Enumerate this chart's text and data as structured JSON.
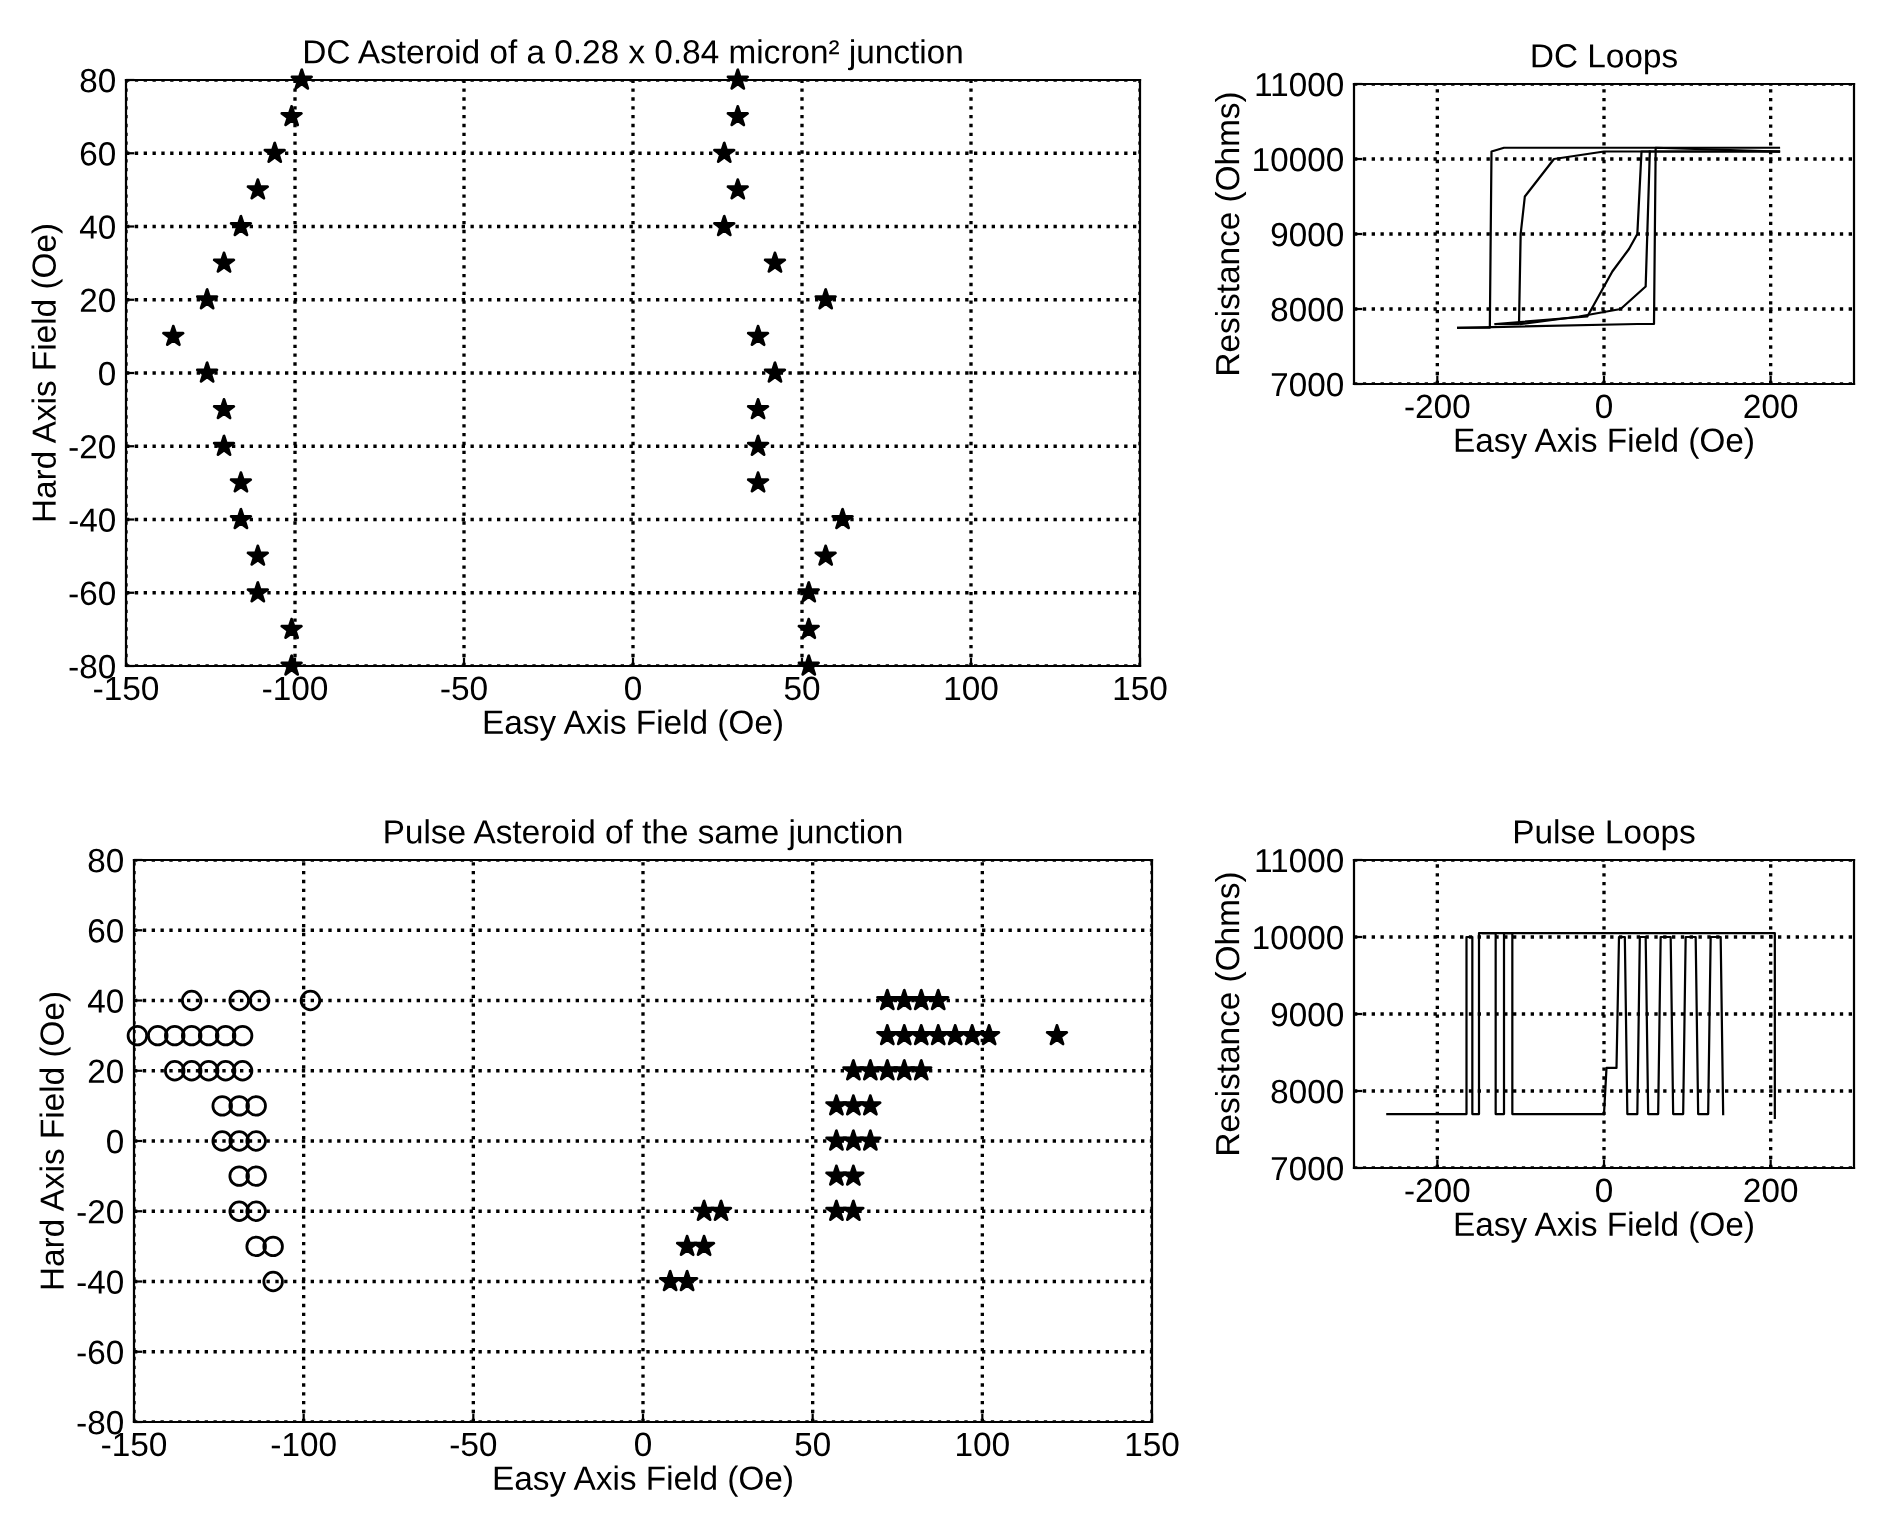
{
  "chart_data": [
    {
      "type": "scatter",
      "title": "DC Asteroid of a 0.28 x 0.84 micron² junction",
      "xlabel": "Easy Axis Field (Oe)",
      "ylabel": "Hard Axis Field (Oe)",
      "xlim": [
        -150,
        150
      ],
      "ylim": [
        -80,
        80
      ],
      "xticks": [
        -150,
        -100,
        -50,
        0,
        50,
        100,
        150
      ],
      "yticks": [
        -80,
        -60,
        -40,
        -20,
        0,
        20,
        40,
        60,
        80
      ],
      "grid": true,
      "series": [
        {
          "color": "#000000",
          "marker": "star",
          "x": [
            -98,
            -101,
            -106,
            -111,
            -116,
            -121,
            -126,
            -136,
            -126,
            -121,
            -121,
            -116,
            -116,
            -111,
            -111,
            -101,
            -101
          ],
          "values": [
            80,
            70,
            60,
            50,
            40,
            30,
            20,
            10,
            0,
            -10,
            -20,
            -30,
            -40,
            -50,
            -60,
            -70,
            -80
          ]
        },
        {
          "color": "#000000",
          "marker": "star",
          "x": [
            31,
            31,
            27,
            31,
            27,
            42,
            57,
            37,
            42,
            37,
            37,
            37,
            62,
            57,
            52,
            52,
            52
          ],
          "values": [
            80,
            70,
            60,
            50,
            40,
            30,
            20,
            10,
            0,
            -10,
            -20,
            -30,
            -40,
            -50,
            -60,
            -70,
            -80
          ]
        }
      ]
    },
    {
      "type": "line",
      "title": "DC Loops",
      "xlabel": "Easy Axis Field (Oe)",
      "ylabel": "Resistance (Ohms)",
      "xlim": [
        -300,
        300
      ],
      "ylim": [
        7000,
        11000
      ],
      "xticks": [
        -200,
        0,
        200
      ],
      "yticks": [
        7000,
        8000,
        9000,
        10000,
        11000
      ],
      "grid": true,
      "line_style": "solid",
      "marker": "none",
      "series": [
        {
          "color": "#000000",
          "x": [
            210,
            -120,
            -135,
            -137,
            -175
          ],
          "values": [
            10150,
            10150,
            10100,
            7750,
            7750
          ]
        },
        {
          "color": "#000000",
          "x": [
            -175,
            40,
            60,
            62,
            210
          ],
          "values": [
            7750,
            7800,
            7800,
            10150,
            10100
          ]
        },
        {
          "color": "#000000",
          "x": [
            210,
            0,
            -60,
            -95,
            -100,
            -102,
            -130
          ],
          "values": [
            10100,
            10100,
            10000,
            9500,
            9000,
            7800,
            7800
          ]
        },
        {
          "color": "#000000",
          "x": [
            -130,
            -20,
            10,
            30,
            40,
            45,
            210
          ],
          "values": [
            7800,
            7900,
            8500,
            8800,
            9000,
            10100,
            10100
          ]
        },
        {
          "color": "#000000",
          "x": [
            -100,
            -30,
            20,
            50,
            55
          ],
          "values": [
            7800,
            7900,
            8000,
            8300,
            10100
          ]
        }
      ]
    },
    {
      "type": "scatter",
      "title": "Pulse Asteroid of the same junction",
      "xlabel": "Easy Axis Field (Oe)",
      "ylabel": "Hard Axis Field (Oe)",
      "xlim": [
        -150,
        150
      ],
      "ylim": [
        -80,
        80
      ],
      "xticks": [
        -150,
        -100,
        -50,
        0,
        50,
        100,
        150
      ],
      "yticks": [
        -80,
        -60,
        -40,
        -20,
        0,
        20,
        40,
        60,
        80
      ],
      "grid": true,
      "series": [
        {
          "color": "#000000",
          "marker": "circle",
          "x": [
            -133,
            -119,
            -113,
            -98,
            -149,
            -143,
            -138,
            -133,
            -128,
            -123,
            -118,
            -138,
            -133,
            -128,
            -123,
            -118,
            -124,
            -119,
            -114,
            -124,
            -119,
            -114,
            -119,
            -114,
            -119,
            -114,
            -114,
            -109,
            -109
          ],
          "values": [
            40,
            40,
            40,
            40,
            30,
            30,
            30,
            30,
            30,
            30,
            30,
            20,
            20,
            20,
            20,
            20,
            10,
            10,
            10,
            0,
            0,
            0,
            -10,
            -10,
            -20,
            -20,
            -30,
            -30,
            -40
          ]
        },
        {
          "color": "#000000",
          "marker": "star",
          "x": [
            72,
            77,
            82,
            87,
            72,
            77,
            82,
            87,
            92,
            97,
            102,
            122,
            62,
            67,
            72,
            77,
            82,
            57,
            62,
            67,
            57,
            62,
            67,
            57,
            62,
            57,
            62,
            18,
            23,
            13,
            18,
            8,
            13
          ],
          "values": [
            40,
            40,
            40,
            40,
            30,
            30,
            30,
            30,
            30,
            30,
            30,
            30,
            20,
            20,
            20,
            20,
            20,
            10,
            10,
            10,
            0,
            0,
            0,
            -10,
            -10,
            -20,
            -20,
            -20,
            -20,
            -30,
            -30,
            -40,
            -40
          ]
        }
      ]
    },
    {
      "type": "line",
      "title": "Pulse Loops",
      "xlabel": "Easy Axis Field (Oe)",
      "ylabel": "Resistance (Ohms)",
      "xlim": [
        -300,
        300
      ],
      "ylim": [
        7000,
        11000
      ],
      "xticks": [
        -200,
        0,
        200
      ],
      "yticks": [
        7000,
        8000,
        9000,
        10000,
        11000
      ],
      "grid": true,
      "line_style": "solid",
      "marker": "none",
      "series": [
        {
          "color": "#000000",
          "x": [
            -260,
            -165,
            -165,
            -158,
            -158,
            -150,
            -150,
            205,
            205
          ],
          "values": [
            7700,
            7700,
            10000,
            10000,
            7700,
            7700,
            10050,
            10050,
            7650
          ]
        },
        {
          "color": "#000000",
          "x": [
            -145,
            -130,
            -130,
            -120,
            -120,
            -110,
            -110,
            0
          ],
          "values": [
            10050,
            10050,
            7700,
            7700,
            10050,
            10050,
            7700,
            7700
          ]
        },
        {
          "color": "#000000",
          "x": [
            0,
            3,
            15,
            18,
            25,
            28,
            40,
            43,
            50,
            53,
            65,
            68,
            80,
            83,
            95,
            98,
            110,
            113,
            125,
            128,
            140,
            143
          ],
          "values": [
            7700,
            8300,
            8300,
            10000,
            10000,
            7700,
            7700,
            10000,
            10000,
            7700,
            7700,
            10000,
            10000,
            7700,
            7700,
            10000,
            10000,
            7700,
            7700,
            10000,
            10000,
            7700
          ]
        }
      ]
    }
  ]
}
